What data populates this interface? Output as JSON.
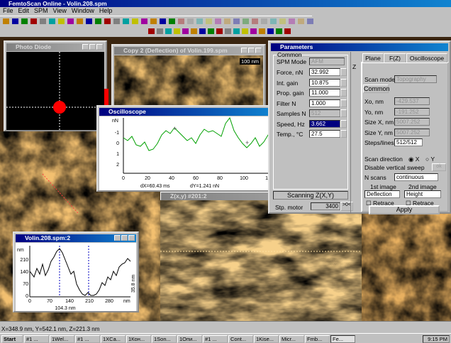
{
  "app": {
    "title": "FemtoScan Online - Volin.208.spm",
    "menu": [
      "File",
      "Edit",
      "SPM",
      "View",
      "Window",
      "Help"
    ]
  },
  "windows": {
    "photo_diode": {
      "title": "Photo Diode"
    },
    "copy2": {
      "title": "Copy 2 (Deflection) of Volin.199.spm",
      "scale": "100 nm"
    },
    "oscilloscope": {
      "title": "Oscilloscope",
      "y_label": "nN",
      "y_ticks": [
        "-1",
        "0",
        "1",
        "2"
      ],
      "x_ticks": [
        "0",
        "20",
        "40",
        "60",
        "80",
        "100",
        "12"
      ],
      "dx": "dX=60.43 ms",
      "dy": "dY=1.241 nN"
    },
    "profile": {
      "title": "Volin.208.spm:2",
      "y_label": "nm",
      "y_ticks": [
        "210",
        "140",
        "70",
        "0"
      ],
      "x_ticks": [
        "0",
        "70",
        "140",
        "210",
        "280"
      ],
      "x_unit": "nm",
      "width": "104.3 nm",
      "height": "35.8 nm"
    },
    "zxy": {
      "title": "Z(x,y) #201:2"
    }
  },
  "parameters": {
    "title": "Parameters",
    "common": "Common",
    "spm_mode": {
      "label": "SPM Mode",
      "value": "AFM"
    },
    "fields": [
      {
        "label": "Force, nN",
        "value": "32.992"
      },
      {
        "label": "Int. gain",
        "value": "10.875"
      },
      {
        "label": "Prop. gain",
        "value": "11.000"
      },
      {
        "label": "Filter N",
        "value": "1.000"
      },
      {
        "label": "Samples N",
        "value": "512"
      },
      {
        "label": "Speed, Hz",
        "value": "3.662"
      },
      {
        "label": "Temp., °C",
        "value": "27.5"
      }
    ],
    "z": "Z",
    "scanning": "Scanning Z(X,Y)",
    "stp_motor": {
      "label": "Stp. motor",
      "value": "3400",
      "button": ">0<"
    },
    "tabs": [
      "Plane",
      "F(Z)",
      "Oscilloscope"
    ],
    "scan_mode": {
      "label": "Scan mode",
      "value": "Topography"
    },
    "subtab": "Common",
    "scan_fields": [
      {
        "label": "Xo, nm",
        "value": "-429.537"
      },
      {
        "label": "Yo, nm",
        "value": "-191.252"
      },
      {
        "label": "Size X, nm",
        "value": "5007.252"
      },
      {
        "label": "Size Y, nm",
        "value": "5007.252"
      },
      {
        "label": "Steps/lines",
        "value": "512/512"
      }
    ],
    "ok": "ok",
    "scan_direction": {
      "label": "Scan direction",
      "x": "X",
      "y": "Y"
    },
    "disable_sweep": "Disable vertical sweep",
    "n_scans": {
      "label": "N scans",
      "value": "continuous"
    },
    "image1": {
      "label": "1st image",
      "value": "Deflection",
      "retrace": "Retrace"
    },
    "image2": {
      "label": "2nd image",
      "value": "Height",
      "retrace": "Retrace"
    },
    "apply": "Apply"
  },
  "status": "X=348.9 nm, Y=542.1 nm, Z=221.3 nm",
  "taskbar": {
    "start": "Start",
    "items": [
      "#1 ...",
      "1Wel...",
      "#1 ...",
      "1XCa...",
      "1Кон...",
      "1Son...",
      "1Опи...",
      "#1 ...",
      "Cont...",
      "1Kise...",
      "Micr...",
      "Fmb...",
      "Fe..."
    ],
    "clock": "9:15 PM"
  }
}
